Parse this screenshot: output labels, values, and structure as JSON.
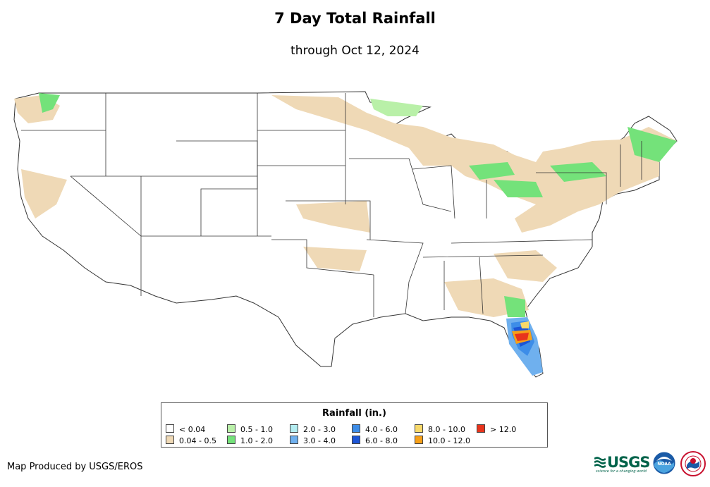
{
  "header": {
    "title": "7 Day Total Rainfall",
    "subtitle": "through Oct 12, 2024"
  },
  "map": {
    "region": "Contiguous United States",
    "variable": "7-day total precipitation (in.)",
    "heaviest_area": "Florida (west-central peninsula)",
    "colors": {
      "background": "#ffffff",
      "state_border": "#333333"
    }
  },
  "legend": {
    "title": "Rainfall (in.)",
    "items": [
      {
        "label": "< 0.04",
        "color": "#ffffff"
      },
      {
        "label": "0.04 - 0.5",
        "color": "#efd9b6"
      },
      {
        "label": "0.5 - 1.0",
        "color": "#b9f0a8"
      },
      {
        "label": "1.0 - 2.0",
        "color": "#74e27a"
      },
      {
        "label": "2.0 - 3.0",
        "color": "#b3ecf0"
      },
      {
        "label": "3.0 - 4.0",
        "color": "#6fb0ee"
      },
      {
        "label": "4.0 - 6.0",
        "color": "#3d8de8"
      },
      {
        "label": "6.0 - 8.0",
        "color": "#1c55d6"
      },
      {
        "label": "8.0 - 10.0",
        "color": "#f8d96a"
      },
      {
        "label": "10.0 - 12.0",
        "color": "#f7a018"
      },
      {
        "label": "> 12.0",
        "color": "#e8341c"
      }
    ]
  },
  "footer": {
    "credit": "Map Produced by USGS/EROS",
    "logos": {
      "usgs_text": "USGS",
      "usgs_tagline": "science for a changing world",
      "noaa_text": "NOAA",
      "nws_icon": "nws-logo"
    }
  }
}
